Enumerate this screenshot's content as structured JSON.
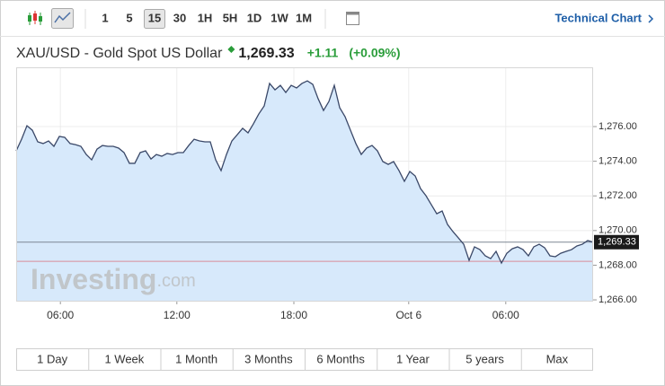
{
  "toolbar": {
    "intervals": [
      "1",
      "5",
      "15",
      "30",
      "1H",
      "5H",
      "1D",
      "1W",
      "1M"
    ],
    "active_interval": "15",
    "link": "Technical Chart"
  },
  "header": {
    "title": "XAU/USD - Gold Spot US Dollar",
    "price": "1,269.33",
    "change": "+1.11",
    "change_pct": "(+0.09%)"
  },
  "watermark": {
    "brand": "Investing",
    "suffix": ".com"
  },
  "ranges": [
    "1 Day",
    "1 Week",
    "1 Month",
    "3 Months",
    "6 Months",
    "1 Year",
    "5 years",
    "Max"
  ],
  "chart_data": {
    "type": "area",
    "color": "#3a4868",
    "fill": "#d7e9fb",
    "grid": true,
    "x": [
      0,
      1,
      2,
      3,
      4,
      5,
      6,
      7,
      8,
      9,
      10,
      11,
      12,
      13,
      14,
      15,
      16,
      17,
      18,
      19,
      20,
      21,
      22,
      23,
      24,
      25,
      26,
      27,
      28,
      29,
      30,
      31,
      32,
      33,
      34,
      35,
      36,
      37,
      38,
      39,
      40,
      41,
      42,
      43,
      44,
      45,
      46,
      47,
      48,
      49,
      50,
      51,
      52,
      53,
      54,
      55,
      56,
      57,
      58,
      59,
      60,
      61,
      62,
      63,
      64,
      65,
      66,
      67,
      68,
      69,
      70,
      71,
      72,
      73,
      74,
      75,
      76,
      77,
      78,
      79,
      80,
      81,
      82,
      83,
      84,
      85,
      86,
      87,
      88,
      89,
      90,
      91,
      92,
      93,
      94,
      95,
      96,
      97,
      98,
      99,
      100,
      101,
      102,
      103,
      104,
      105,
      106,
      107
    ],
    "values": [
      1274.6,
      1275.27,
      1276.05,
      1275.79,
      1275.12,
      1275.02,
      1275.17,
      1274.86,
      1275.43,
      1275.38,
      1275.02,
      1274.96,
      1274.86,
      1274.39,
      1274.08,
      1274.7,
      1274.91,
      1274.86,
      1274.86,
      1274.76,
      1274.5,
      1273.88,
      1273.88,
      1274.5,
      1274.6,
      1274.13,
      1274.39,
      1274.29,
      1274.45,
      1274.39,
      1274.5,
      1274.5,
      1274.91,
      1275.27,
      1275.17,
      1275.12,
      1275.12,
      1274.08,
      1273.46,
      1274.39,
      1275.17,
      1275.53,
      1275.9,
      1275.64,
      1276.16,
      1276.73,
      1277.19,
      1278.49,
      1278.12,
      1278.38,
      1277.97,
      1278.38,
      1278.23,
      1278.49,
      1278.64,
      1278.44,
      1277.61,
      1276.93,
      1277.45,
      1278.38,
      1277.09,
      1276.57,
      1275.79,
      1275.02,
      1274.39,
      1274.76,
      1274.91,
      1274.6,
      1273.98,
      1273.82,
      1273.98,
      1273.46,
      1272.84,
      1273.41,
      1273.15,
      1272.42,
      1272.01,
      1271.49,
      1270.97,
      1271.13,
      1270.35,
      1269.94,
      1269.58,
      1269.21,
      1268.28,
      1269.06,
      1268.9,
      1268.54,
      1268.38,
      1268.8,
      1268.12,
      1268.69,
      1268.95,
      1269.06,
      1268.9,
      1268.54,
      1269.06,
      1269.21,
      1269.01,
      1268.54,
      1268.49,
      1268.69,
      1268.8,
      1268.9,
      1269.11,
      1269.21,
      1269.42,
      1269.33
    ],
    "xlim": [
      0,
      107
    ],
    "xticks": [
      {
        "value": 8.2,
        "label": "06:00"
      },
      {
        "value": 29.8,
        "label": "12:00"
      },
      {
        "value": 51.5,
        "label": "18:00"
      },
      {
        "value": 72.8,
        "label": "Oct 6"
      },
      {
        "value": 90.8,
        "label": "06:00"
      }
    ],
    "ylim": [
      1265.95,
      1279.42
    ],
    "yticks": [
      {
        "value": 1266,
        "label": "1,266.00"
      },
      {
        "value": 1268,
        "label": "1,268.00"
      },
      {
        "value": 1270,
        "label": "1,270.00"
      },
      {
        "value": 1272,
        "label": "1,272.00"
      },
      {
        "value": 1274,
        "label": "1,274.00"
      },
      {
        "value": 1276,
        "label": "1,276.00"
      }
    ],
    "last_price": {
      "value": 1269.33,
      "label": "1,269.33"
    },
    "prev_close": 1268.22
  }
}
